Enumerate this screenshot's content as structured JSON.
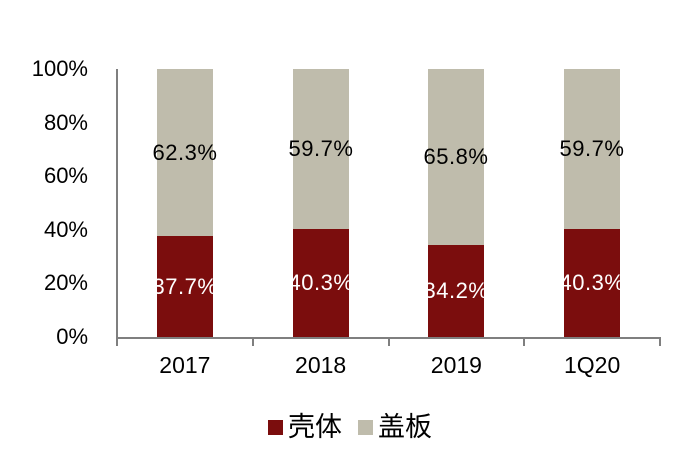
{
  "chart_data": {
    "type": "bar",
    "stacked": true,
    "orientation": "vertical",
    "categories": [
      "2017",
      "2018",
      "2019",
      "1Q20"
    ],
    "series": [
      {
        "name": "壳体",
        "color": "#7B0D0D",
        "label_color": "#FFFFFF",
        "values": [
          37.7,
          40.3,
          34.2,
          40.3
        ],
        "labels": [
          "37.7%",
          "40.3%",
          "34.2%",
          "40.3%"
        ]
      },
      {
        "name": "盖板",
        "color": "#BFBCAC",
        "label_color": "#000000",
        "values": [
          62.3,
          59.7,
          65.8,
          59.7
        ],
        "labels": [
          "62.3%",
          "59.7%",
          "65.8%",
          "59.7%"
        ]
      }
    ],
    "y_axis": {
      "min": 0,
      "max": 100,
      "tick_labels": [
        "0%",
        "20%",
        "40%",
        "60%",
        "80%",
        "100%"
      ],
      "tick_values": [
        0,
        20,
        40,
        60,
        80,
        100
      ]
    },
    "grid": false,
    "legend_position": "bottom",
    "colors": {
      "axis": "#7F7F7F",
      "background": "#FFFFFF",
      "text": "#000000"
    }
  },
  "legend": {
    "items": [
      {
        "label": "壳体",
        "color": "#7B0D0D"
      },
      {
        "label": "盖板",
        "color": "#BFBCAC"
      }
    ]
  }
}
